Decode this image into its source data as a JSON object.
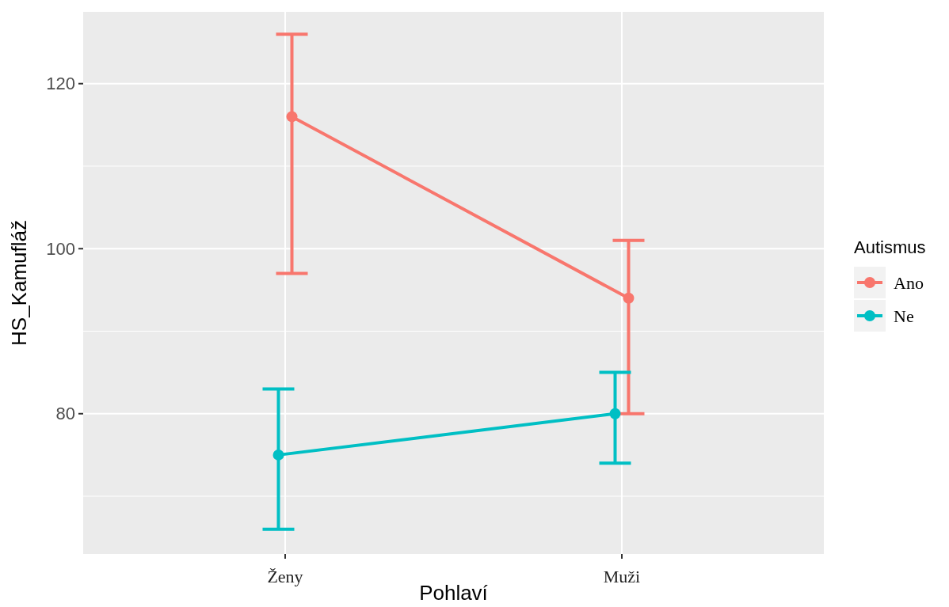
{
  "chart_data": {
    "type": "line",
    "xlabel": "Pohlaví",
    "ylabel": "HS_Kamufláž",
    "legend_title": "Autismus",
    "categories": [
      "Ženy",
      "Muži"
    ],
    "series": [
      {
        "name": "Ano",
        "color": "#f8766d",
        "values": [
          116,
          94
        ],
        "errors": [
          [
            97,
            126
          ],
          [
            80,
            101
          ]
        ]
      },
      {
        "name": "Ne",
        "color": "#00bfc4",
        "values": [
          75,
          80
        ],
        "errors": [
          [
            66,
            83
          ],
          [
            74,
            85
          ]
        ]
      }
    ],
    "ylim": [
      63,
      128.7
    ],
    "yticks": [
      80,
      100,
      120
    ],
    "grid": true,
    "legend": "right",
    "marker": "circle",
    "line_style": "solid"
  }
}
